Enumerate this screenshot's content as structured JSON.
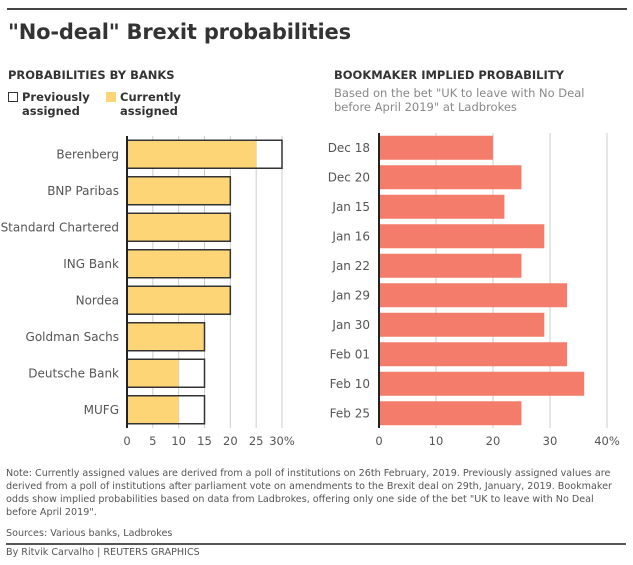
{
  "header": {
    "title": "\"No-deal\" Brexit probabilities"
  },
  "colors": {
    "current": "#FDD577",
    "previous_border": "#333333",
    "bookmaker": "#F47C6A",
    "grid": "#cccccc"
  },
  "legend": {
    "previous": "Previously assigned",
    "current": "Currently assigned"
  },
  "chart_data": [
    {
      "type": "bar",
      "orientation": "horizontal",
      "title": "PROBABILITIES BY BANKS",
      "categories": [
        "Berenberg",
        "BNP Paribas",
        "Standard Chartered",
        "ING Bank",
        "Nordea",
        "Goldman Sachs",
        "Deutsche Bank",
        "MUFG"
      ],
      "series": [
        {
          "name": "Previously assigned",
          "values": [
            30,
            20,
            20,
            20,
            20,
            15,
            15,
            15
          ]
        },
        {
          "name": "Currently assigned",
          "values": [
            25,
            20,
            20,
            20,
            20,
            15,
            10,
            10
          ]
        }
      ],
      "xlim": [
        0,
        30
      ],
      "ticks": [
        0,
        5,
        10,
        15,
        20,
        25,
        30
      ],
      "tick_labels": [
        "0",
        "5",
        "10",
        "15",
        "20",
        "25",
        "30%"
      ],
      "grid": true,
      "legend": "top-left"
    },
    {
      "type": "bar",
      "orientation": "horizontal",
      "title": "BOOKMAKER IMPLIED PROBABILITY",
      "subtitle": "Based on the bet \"UK to leave with No Deal before April 2019\" at Ladbrokes",
      "categories": [
        "Dec 18",
        "Dec 20",
        "Jan 15",
        "Jan 16",
        "Jan 22",
        "Jan 29",
        "Jan 30",
        "Feb 01",
        "Feb 10",
        "Feb 25"
      ],
      "values": [
        20,
        25,
        22,
        29,
        25,
        33,
        29,
        33,
        36,
        25
      ],
      "xlim": [
        0,
        40
      ],
      "ticks": [
        0,
        10,
        20,
        30,
        40
      ],
      "tick_labels": [
        "0",
        "10",
        "20",
        "30",
        "40%"
      ],
      "grid": true
    }
  ],
  "footer": {
    "note": "Note: Currently assigned values are derived from a poll of institutions on 26th February, 2019. Previously assigned values are derived from a poll of institutions after parliament vote on amendments to the Brexit deal on 29th, January, 2019. Bookmaker odds show implied probabilities based on data from Ladbrokes, offering only one side of the bet \"UK to leave with No Deal before April 2019\".",
    "sources": "Sources: Various banks, Ladbrokes",
    "byline": "By Ritvik Carvalho    | REUTERS GRAPHICS"
  }
}
